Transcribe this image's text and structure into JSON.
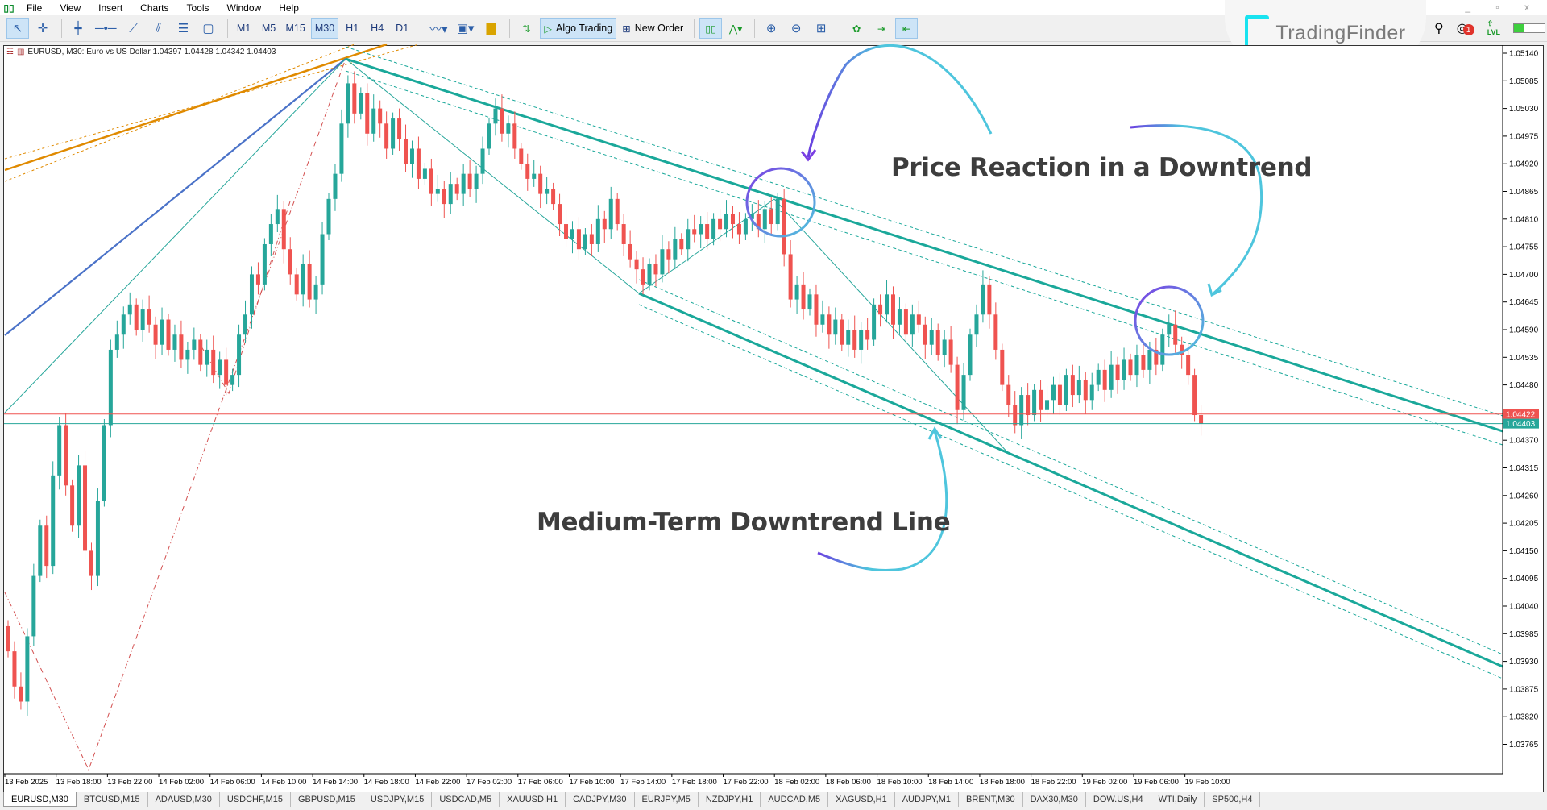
{
  "menu": [
    "File",
    "View",
    "Insert",
    "Charts",
    "Tools",
    "Window",
    "Help"
  ],
  "toolbar": {
    "timeframes": [
      "M1",
      "M5",
      "M15",
      "M30",
      "H1",
      "H4",
      "D1"
    ],
    "active_timeframe": "M30",
    "algo_trading": "Algo Trading",
    "new_order": "New Order"
  },
  "logo": {
    "text": "TradingFinder"
  },
  "notifications": {
    "count": "1"
  },
  "level": {
    "label": "LVL",
    "balance_fill": 0.35
  },
  "chart": {
    "header": "EURUSD, M30:  Euro vs US Dollar  1.04397 1.04428 1.04342 1.04403",
    "symbol": "EURUSD",
    "timeframe": "M30",
    "bid_price": "1.04403",
    "ask_price": "1.04422",
    "price_ticks": [
      "1.05140",
      "1.05085",
      "1.05030",
      "1.04975",
      "1.04920",
      "1.04865",
      "1.04810",
      "1.04755",
      "1.04700",
      "1.04645",
      "1.04590",
      "1.04535",
      "1.04480",
      "1.04370",
      "1.04315",
      "1.04260",
      "1.04205",
      "1.04150",
      "1.04095",
      "1.04040",
      "1.03985",
      "1.03930",
      "1.03875",
      "1.03820",
      "1.03765"
    ],
    "time_ticks": [
      "13 Feb 2025",
      "13 Feb 18:00",
      "13 Feb 22:00",
      "14 Feb 02:00",
      "14 Feb 06:00",
      "14 Feb 10:00",
      "14 Feb 14:00",
      "14 Feb 18:00",
      "14 Feb 22:00",
      "17 Feb 02:00",
      "17 Feb 06:00",
      "17 Feb 10:00",
      "17 Feb 14:00",
      "17 Feb 18:00",
      "17 Feb 22:00",
      "18 Feb 02:00",
      "18 Feb 06:00",
      "18 Feb 10:00",
      "18 Feb 14:00",
      "18 Feb 18:00",
      "18 Feb 22:00",
      "19 Feb 02:00",
      "19 Feb 06:00",
      "19 Feb 10:00"
    ],
    "colors": {
      "bull": "#26a69a",
      "bear": "#ef5350",
      "trendline": "#1aa89a",
      "bid_line": "#26a69a",
      "ask_line": "#ef5350"
    },
    "closes": [
      1.0395,
      1.0388,
      1.0385,
      1.0398,
      1.041,
      1.042,
      1.0412,
      1.043,
      1.044,
      1.0428,
      1.042,
      1.0432,
      1.0415,
      1.041,
      1.0425,
      1.044,
      1.0455,
      1.0458,
      1.0462,
      1.0464,
      1.0459,
      1.0463,
      1.046,
      1.0456,
      1.0461,
      1.0455,
      1.0458,
      1.0453,
      1.0455,
      1.0457,
      1.0452,
      1.0455,
      1.045,
      1.0453,
      1.0448,
      1.045,
      1.0458,
      1.0462,
      1.047,
      1.0468,
      1.0476,
      1.048,
      1.0483,
      1.0475,
      1.047,
      1.0466,
      1.0472,
      1.0465,
      1.0468,
      1.0478,
      1.0485,
      1.049,
      1.05,
      1.0508,
      1.0502,
      1.0506,
      1.0498,
      1.0503,
      1.05,
      1.0495,
      1.0501,
      1.0497,
      1.0492,
      1.0495,
      1.0489,
      1.0491,
      1.0486,
      1.0487,
      1.0484,
      1.0488,
      1.0486,
      1.049,
      1.0487,
      1.049,
      1.0495,
      1.05,
      1.0503,
      1.0498,
      1.05,
      1.0495,
      1.0492,
      1.0489,
      1.049,
      1.0486,
      1.0487,
      1.0484,
      1.048,
      1.0477,
      1.0479,
      1.0475,
      1.0478,
      1.0476,
      1.0481,
      1.0479,
      1.0485,
      1.048,
      1.0476,
      1.0473,
      1.0471,
      1.0468,
      1.0472,
      1.047,
      1.0475,
      1.0473,
      1.0477,
      1.0475,
      1.0479,
      1.0478,
      1.048,
      1.0477,
      1.0481,
      1.0479,
      1.0482,
      1.048,
      1.0478,
      1.0481,
      1.0482,
      1.0479,
      1.0483,
      1.048,
      1.0485,
      1.0474,
      1.0465,
      1.0468,
      1.0463,
      1.0466,
      1.046,
      1.0462,
      1.0458,
      1.0461,
      1.0456,
      1.0459,
      1.0455,
      1.0459,
      1.0457,
      1.0464,
      1.0462,
      1.0466,
      1.046,
      1.0463,
      1.0458,
      1.0462,
      1.046,
      1.0456,
      1.0459,
      1.0454,
      1.0457,
      1.0452,
      1.0443,
      1.045,
      1.0458,
      1.0462,
      1.0468,
      1.0462,
      1.0455,
      1.0448,
      1.0444,
      1.044,
      1.0446,
      1.0442,
      1.0447,
      1.0443,
      1.0445,
      1.0448,
      1.0444,
      1.045,
      1.0446,
      1.0449,
      1.0445,
      1.0448,
      1.0451,
      1.0447,
      1.0452,
      1.0449,
      1.0453,
      1.045,
      1.0454,
      1.0451,
      1.0455,
      1.0452,
      1.0458,
      1.046,
      1.0456,
      1.0454,
      1.045,
      1.0442,
      1.04403
    ]
  },
  "annotations": {
    "price_reaction": "Price Reaction in a Downtrend",
    "downtrend_line": "Medium-Term Downtrend Line"
  },
  "tabs": [
    "EURUSD,M30",
    "BTCUSD,M15",
    "ADAUSD,M30",
    "USDCHF,M15",
    "GBPUSD,M15",
    "USDJPY,M15",
    "USDCAD,M5",
    "XAUUSD,H1",
    "CADJPY,M30",
    "EURJPY,M5",
    "NZDJPY,H1",
    "AUDCAD,M5",
    "XAGUSD,H1",
    "AUDJPY,M1",
    "BRENT,M30",
    "DAX30,M30",
    "DOW.US,H4",
    "WTI,Daily",
    "SP500,H4"
  ]
}
